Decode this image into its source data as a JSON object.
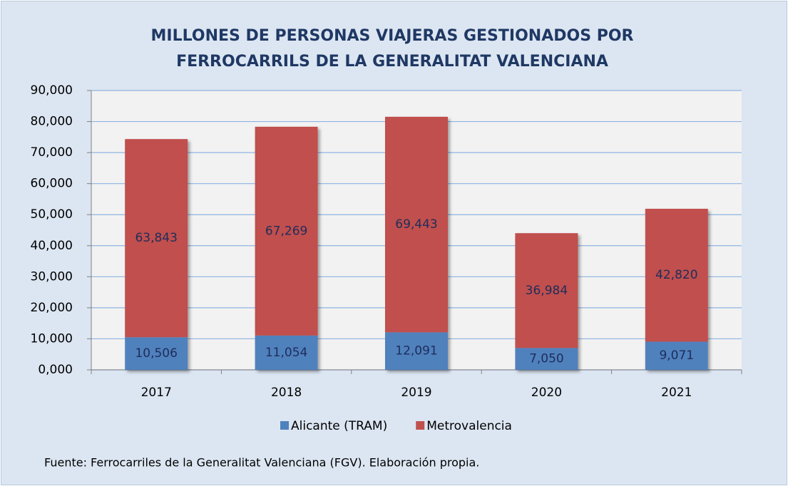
{
  "chart_data": {
    "type": "stacked_bar",
    "title": "MILLONES DE PERSONAS VIAJERAS GESTIONADOS POR FERROCARRILS DE LA GENERALITAT VALENCIANA",
    "categories": [
      "2017",
      "2018",
      "2019",
      "2020",
      "2021"
    ],
    "series": [
      {
        "name": "Alicante (TRAM)",
        "color": "#4f81bd",
        "values": [
          10.506,
          11.054,
          12.091,
          7.05,
          9.071
        ],
        "value_labels": [
          "10,506",
          "11,054",
          "12,091",
          "7,050",
          "9,071"
        ]
      },
      {
        "name": "Metrovalencia",
        "color": "#c0504d",
        "values": [
          63.843,
          67.269,
          69.443,
          36.984,
          42.82
        ],
        "value_labels": [
          "63,843",
          "67,269",
          "69,443",
          "36,984",
          "42,820"
        ]
      }
    ],
    "ylim": [
      0,
      90
    ],
    "yticks": [
      {
        "value": 0,
        "label": "0,000"
      },
      {
        "value": 10,
        "label": "10,000"
      },
      {
        "value": 20,
        "label": "20,000"
      },
      {
        "value": 30,
        "label": "30,000"
      },
      {
        "value": 40,
        "label": "40,000"
      },
      {
        "value": 50,
        "label": "50,000"
      },
      {
        "value": 60,
        "label": "60,000"
      },
      {
        "value": 70,
        "label": "70,000"
      },
      {
        "value": 80,
        "label": "80,000"
      },
      {
        "value": 90,
        "label": "90,000"
      }
    ],
    "grid": true,
    "legend": "bottom",
    "source": "Fuente: Ferrocarriles de la Generalitat Valenciana (FGV). Elaboración propia."
  }
}
